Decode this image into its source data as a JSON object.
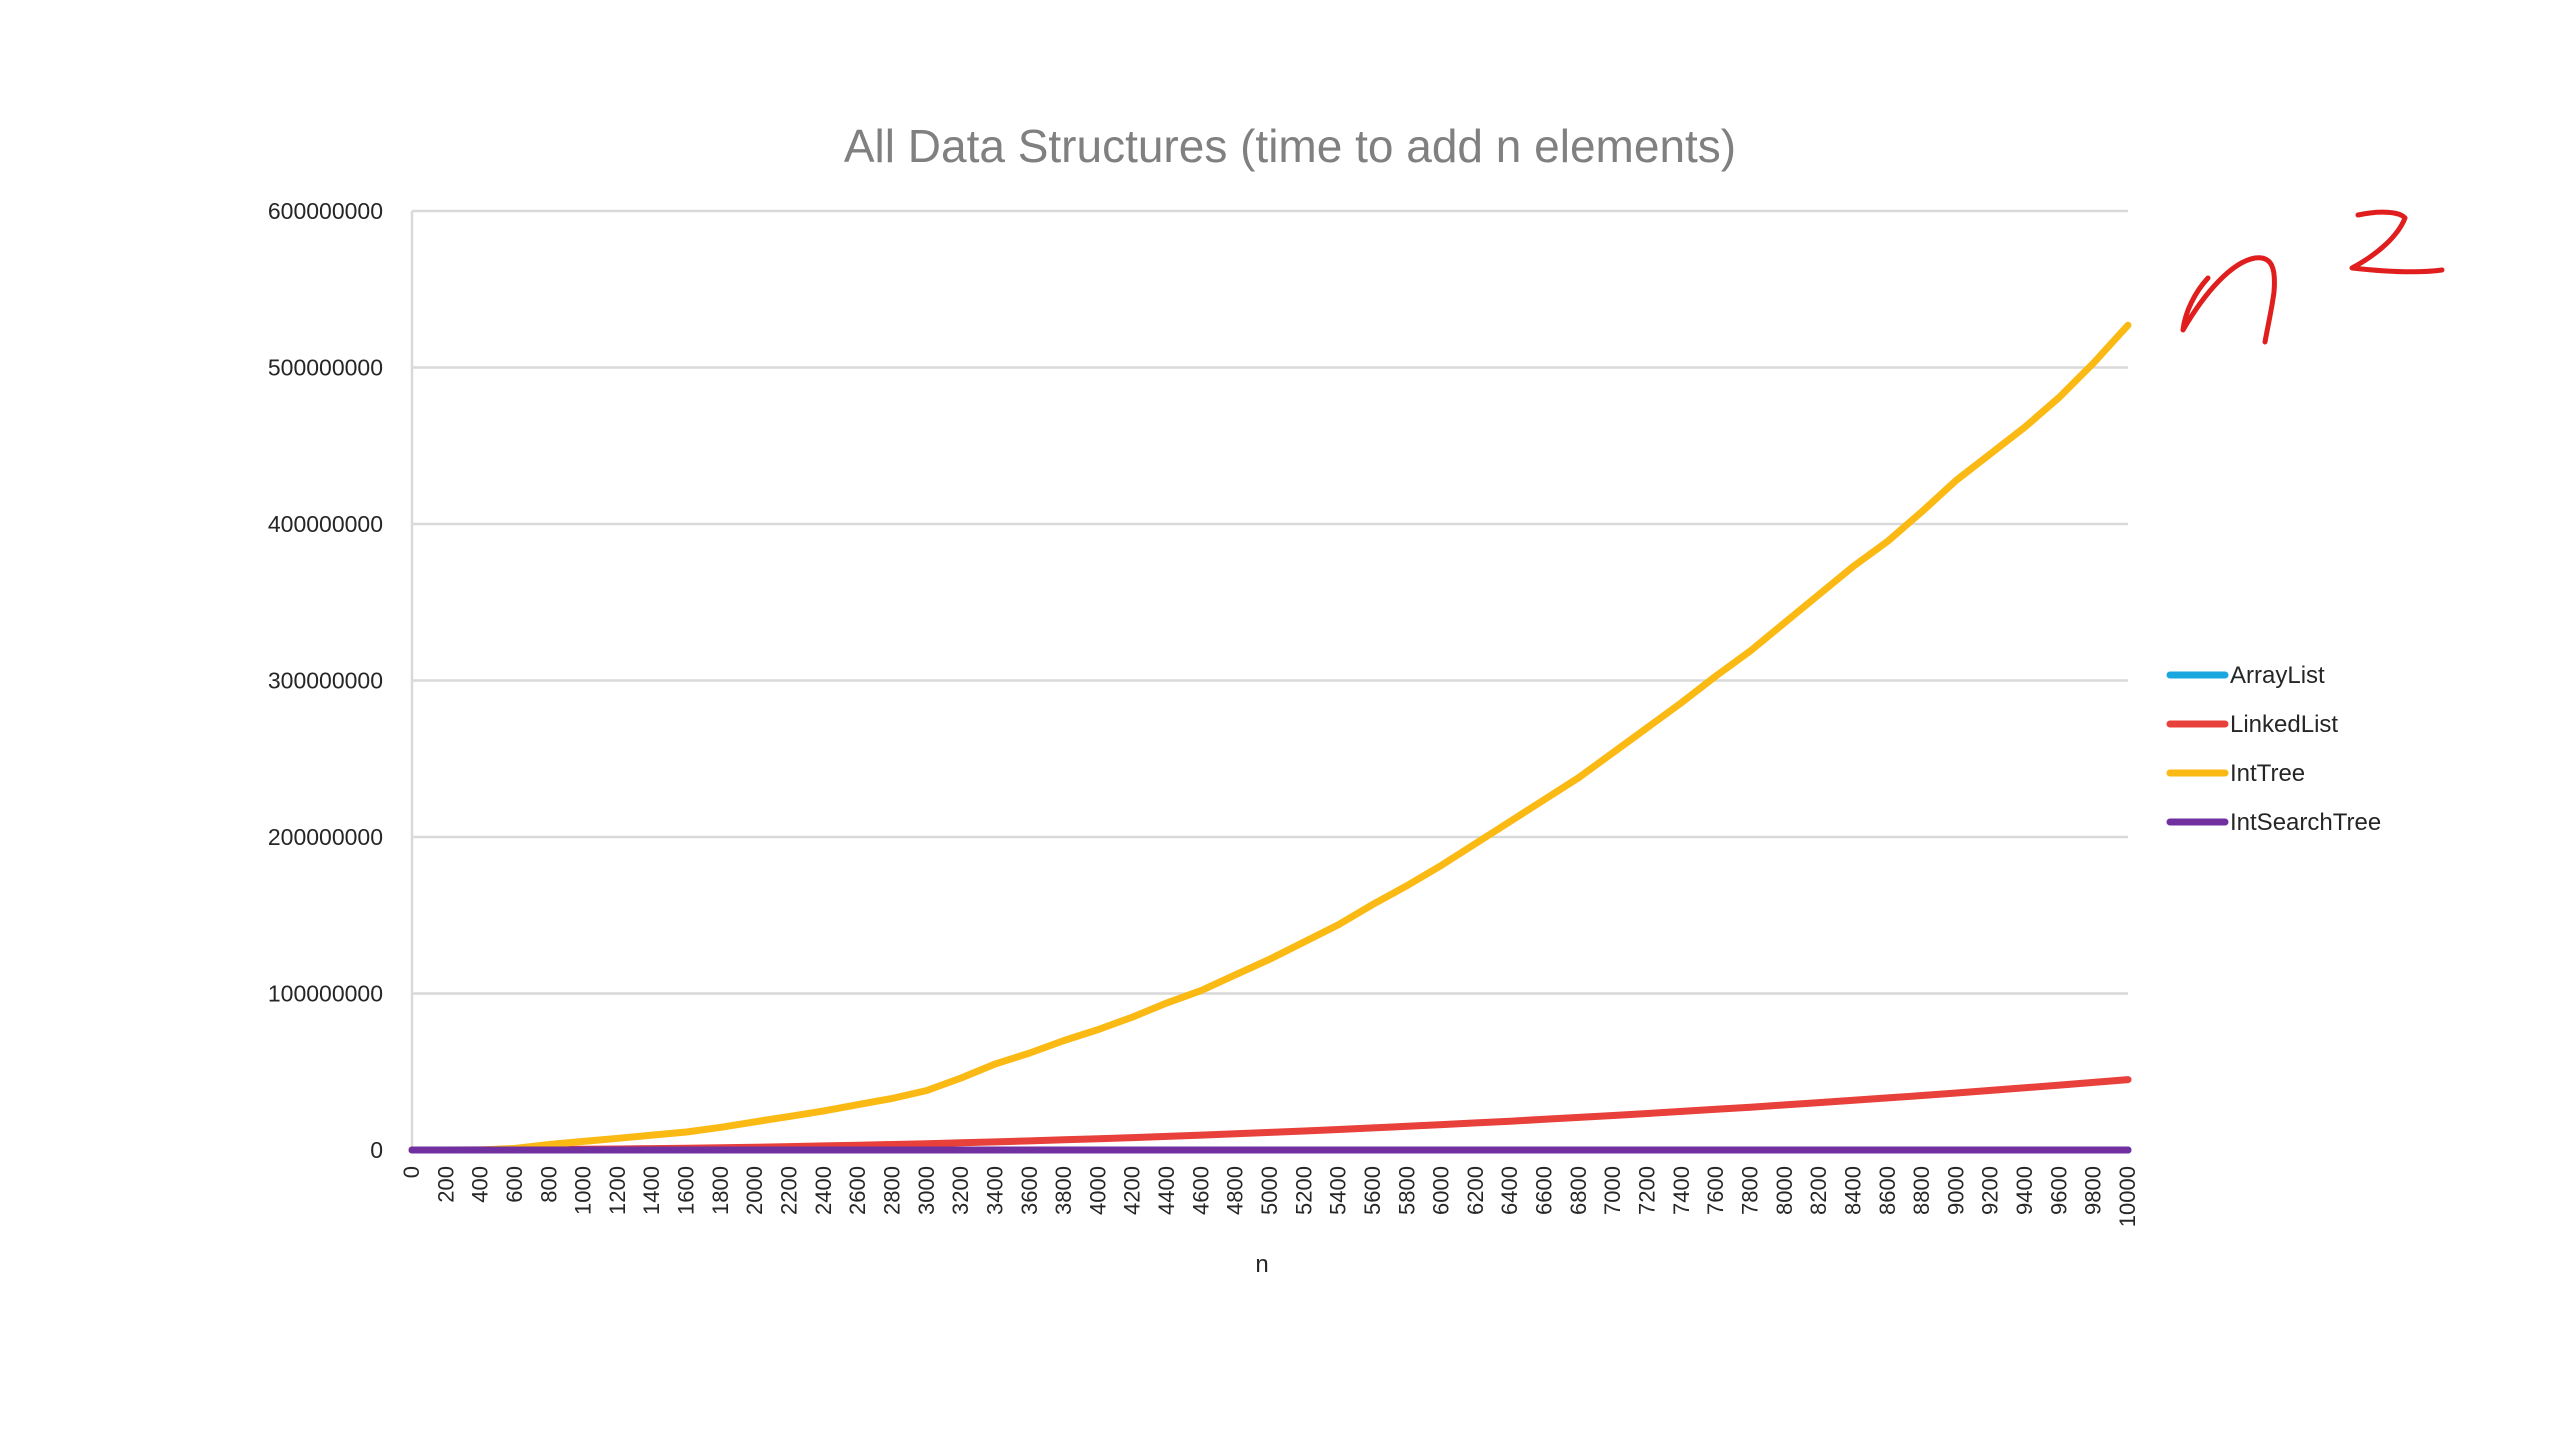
{
  "chart_data": {
    "type": "line",
    "title": "All Data Structures (time to add n elements)",
    "xlabel": "n",
    "ylabel": "",
    "x": [
      0,
      200,
      400,
      600,
      800,
      1000,
      1200,
      1400,
      1600,
      1800,
      2000,
      2200,
      2400,
      2600,
      2800,
      3000,
      3200,
      3400,
      3600,
      3800,
      4000,
      4200,
      4400,
      4600,
      4800,
      5000,
      5200,
      5400,
      5600,
      5800,
      6000,
      6200,
      6400,
      6600,
      6800,
      7000,
      7200,
      7400,
      7600,
      7800,
      8000,
      8200,
      8400,
      8600,
      8800,
      9000,
      9200,
      9400,
      9600,
      9800,
      10000
    ],
    "ylim": [
      0,
      600000000
    ],
    "yticks": [
      0,
      100000000,
      200000000,
      300000000,
      400000000,
      500000000,
      600000000
    ],
    "ytick_labels": [
      "0",
      "100000000",
      "200000000",
      "300000000",
      "400000000",
      "500000000",
      "600000000"
    ],
    "grid": true,
    "legend_placement": "right",
    "series": [
      {
        "name": "ArrayList",
        "color": "#1AA7DF",
        "values": [
          0,
          0,
          0,
          0,
          0,
          0,
          0,
          0,
          0,
          0,
          0,
          0,
          0,
          0,
          0,
          0,
          0,
          0,
          0,
          0,
          0,
          0,
          0,
          0,
          0,
          0,
          0,
          0,
          0,
          0,
          0,
          0,
          0,
          0,
          0,
          0,
          0,
          0,
          0,
          0,
          0,
          0,
          0,
          0,
          0,
          0,
          0,
          0,
          0,
          0,
          0
        ]
      },
      {
        "name": "LinkedList",
        "color": "#E8403A",
        "values": [
          0,
          20000,
          70000,
          160000,
          290000,
          450000,
          650000,
          880000,
          1150000,
          1460000,
          1800000,
          2180000,
          2590000,
          3040000,
          3530000,
          4050000,
          4610000,
          5200000,
          5830000,
          6500000,
          7200000,
          7940000,
          8710000,
          9520000,
          10370000,
          11250000,
          12170000,
          13120000,
          14110000,
          15140000,
          16200000,
          17300000,
          18430000,
          19600000,
          20810000,
          22050000,
          23330000,
          24640000,
          25990000,
          27380000,
          28800000,
          30260000,
          31750000,
          33280000,
          34850000,
          36450000,
          38090000,
          39760000,
          41470000,
          43220000,
          45000000
        ]
      },
      {
        "name": "IntTree",
        "color": "#FBB913",
        "values": [
          0,
          0,
          0,
          1000000,
          3500000,
          5500000,
          7500000,
          9500000,
          11500000,
          14500000,
          18000000,
          21500000,
          25000000,
          29000000,
          33000000,
          38000000,
          46000000,
          55000000,
          62000000,
          70000000,
          77000000,
          85000000,
          94000000,
          102000000,
          112000000,
          122000000,
          133000000,
          144000000,
          157000000,
          169000000,
          182000000,
          196000000,
          210000000,
          224000000,
          238000000,
          254000000,
          270000000,
          286000000,
          303000000,
          319000000,
          337000000,
          355000000,
          373000000,
          389000000,
          408000000,
          428000000,
          445000000,
          462000000,
          481000000,
          503000000,
          527000000
        ]
      },
      {
        "name": "IntSearchTree",
        "color": "#7030A0",
        "values": [
          0,
          0,
          0,
          0,
          0,
          0,
          0,
          0,
          0,
          0,
          0,
          0,
          0,
          0,
          0,
          0,
          0,
          0,
          0,
          0,
          0,
          0,
          0,
          0,
          0,
          0,
          0,
          0,
          0,
          0,
          0,
          0,
          0,
          0,
          0,
          0,
          0,
          0,
          0,
          0,
          0,
          0,
          0,
          0,
          0,
          0,
          0,
          0,
          0,
          0,
          0
        ]
      }
    ]
  }
}
